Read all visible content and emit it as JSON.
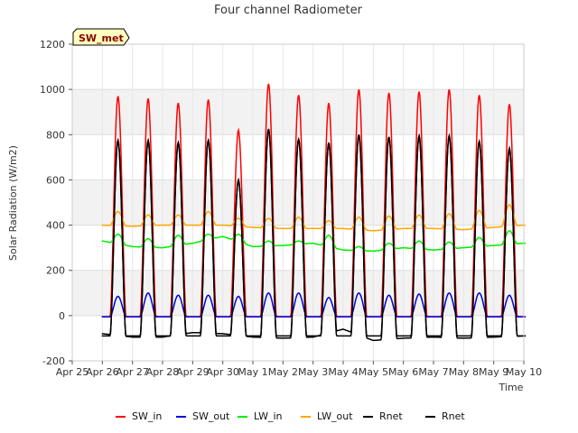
{
  "chart_data": {
    "type": "line",
    "title": "Four channel Radiometer",
    "xlabel": "Time",
    "ylabel": "Solar Radiation (W/m2)",
    "ylim": [
      -200,
      1200
    ],
    "yticks": [
      -200,
      0,
      200,
      400,
      600,
      800,
      1000,
      1200
    ],
    "xlim": [
      0,
      15
    ],
    "xticks": [
      0,
      1,
      2,
      3,
      4,
      5,
      6,
      7,
      8,
      9,
      10,
      11,
      12,
      13,
      14,
      15
    ],
    "xtick_labels": [
      "Apr 25",
      "Apr 26",
      "Apr 27",
      "Apr 28",
      "Apr 29",
      "Apr 30",
      "May 1",
      "May 2",
      "May 3",
      "May 4",
      "May 5",
      "May 6",
      "May 7",
      "May 8",
      "May 9",
      "May 10"
    ],
    "badge": "SW_met",
    "legend_position": "bottom",
    "days": [
      "Apr 25",
      "Apr 26",
      "Apr 27",
      "Apr 28",
      "Apr 29",
      "Apr 30",
      "May 1",
      "May 2",
      "May 3",
      "May 4",
      "May 5",
      "May 6",
      "May 7",
      "May 8"
    ],
    "series": [
      {
        "name": "SW_in",
        "color": "#ff0000",
        "night_level": -5,
        "daily_peak": [
          970,
          960,
          940,
          955,
          820,
          1025,
          975,
          940,
          1000,
          985,
          990,
          1000,
          975,
          935
        ]
      },
      {
        "name": "SW_out",
        "color": "#0000dd",
        "night_level": -5,
        "daily_peak": [
          85,
          100,
          90,
          90,
          85,
          100,
          100,
          80,
          100,
          90,
          95,
          100,
          100,
          90
        ]
      },
      {
        "name": "LW_in",
        "color": "#00ee00",
        "night_level": 330,
        "daily_night": [
          330,
          305,
          300,
          320,
          350,
          305,
          310,
          320,
          290,
          285,
          300,
          290,
          300,
          310,
          320
        ],
        "daily_peak": [
          360,
          340,
          355,
          360,
          360,
          330,
          330,
          355,
          305,
          320,
          330,
          325,
          345,
          375
        ]
      },
      {
        "name": "LW_out",
        "color": "#ffa500",
        "night_level": 400,
        "daily_night": [
          400,
          395,
          400,
          400,
          400,
          390,
          385,
          385,
          385,
          375,
          385,
          385,
          380,
          390,
          400
        ],
        "daily_peak": [
          460,
          445,
          445,
          460,
          430,
          430,
          435,
          420,
          435,
          440,
          445,
          450,
          465,
          490
        ]
      },
      {
        "name": "Rnet",
        "color": "#000000",
        "night_level": -90,
        "daily_night": [
          -80,
          -95,
          -95,
          -75,
          -80,
          -95,
          -100,
          -95,
          -60,
          -110,
          -100,
          -95,
          -100,
          -95,
          -90
        ],
        "daily_peak": [
          775,
          775,
          765,
          775,
          600,
          825,
          780,
          765,
          800,
          790,
          795,
          795,
          770,
          740
        ]
      },
      {
        "name": "Rnet",
        "color": "#000000",
        "night_level": -90,
        "daily_peak": [
          775,
          775,
          765,
          775,
          600,
          825,
          780,
          765,
          800,
          790,
          795,
          795,
          770,
          740
        ]
      }
    ]
  }
}
